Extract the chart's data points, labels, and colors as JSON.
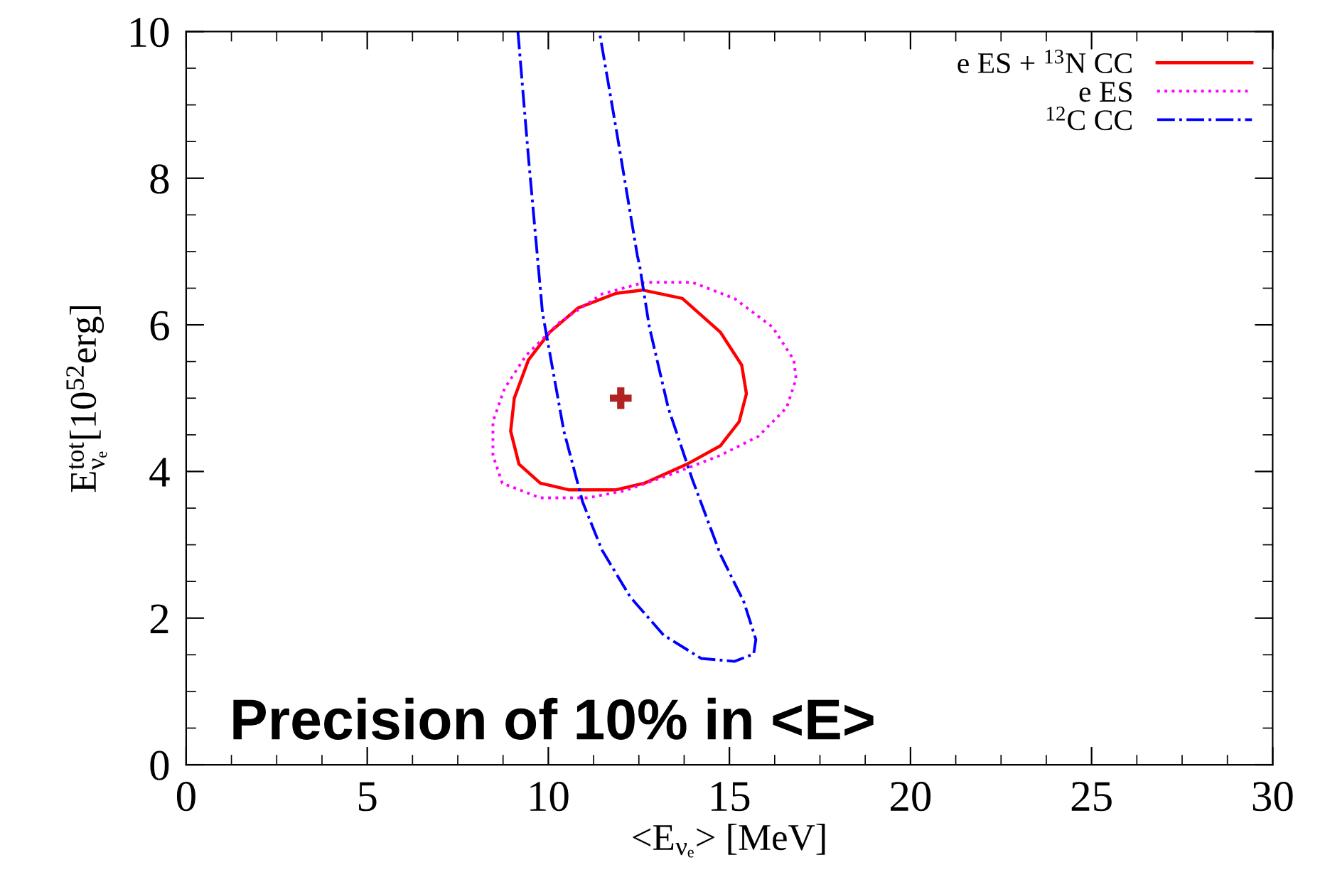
{
  "chart_data": {
    "type": "line",
    "xlabel": "<E$_{νₑ}$> [MeV]",
    "ylabel": "E$^{tot}$$_{νₑ}$[10$^{52}$erg]",
    "xlim": [
      0,
      30
    ],
    "ylim": [
      0,
      10
    ],
    "xticks": [
      0,
      5,
      10,
      15,
      20,
      25,
      30
    ],
    "yticks": [
      0,
      2,
      4,
      6,
      8,
      10
    ],
    "grid": false,
    "legend": "top right",
    "annotations": [
      "Precision of 10% in <E>"
    ],
    "series": [
      {
        "name": "e ES + $^{13}$N CC",
        "color": "#ff0000",
        "line_style": "solid",
        "x": [
          12.65,
          13.7,
          14.75,
          15.34,
          15.47,
          15.27,
          14.75,
          13.83,
          12.65,
          11.87,
          10.56,
          9.78,
          9.19,
          8.96,
          9.06,
          9.45,
          10.04,
          10.82,
          11.87,
          12.55
        ],
        "values": [
          6.47,
          6.36,
          5.9,
          5.45,
          5.06,
          4.68,
          4.35,
          4.1,
          3.84,
          3.75,
          3.75,
          3.84,
          4.1,
          4.55,
          5.0,
          5.52,
          5.9,
          6.23,
          6.43,
          6.47
        ]
      },
      {
        "name": "e ES",
        "color": "#ff00ff",
        "line_style": "dotted",
        "x": [
          12.79,
          13.97,
          15.14,
          16.19,
          16.78,
          16.84,
          16.58,
          15.8,
          14.75,
          13.44,
          12.13,
          11.08,
          9.78,
          8.73,
          8.47,
          8.47,
          8.79,
          9.38,
          10.3,
          11.48,
          12.65
        ],
        "values": [
          6.58,
          6.58,
          6.36,
          5.97,
          5.52,
          5.26,
          4.87,
          4.48,
          4.22,
          3.97,
          3.74,
          3.64,
          3.64,
          3.84,
          4.22,
          4.68,
          5.13,
          5.58,
          6.03,
          6.42,
          6.58
        ]
      },
      {
        "name": "$^{12}$C CC",
        "color": "#0000ff",
        "line_style": "dashdot",
        "x": [
          9.16,
          9.45,
          9.84,
          9.91,
          10.43,
          10.95,
          11.48,
          12.26,
          13.18,
          14.22,
          15.14,
          15.67,
          15.73,
          15.4,
          14.75,
          13.97,
          13.31,
          12.79,
          12.52,
          12.46,
          11.87,
          11.41
        ],
        "values": [
          10.0,
          8.29,
          6.16,
          5.97,
          4.55,
          3.58,
          2.93,
          2.29,
          1.77,
          1.45,
          1.41,
          1.51,
          1.71,
          2.22,
          2.87,
          3.9,
          4.87,
          5.97,
          6.81,
          6.94,
          8.68,
          10.0
        ]
      },
      {
        "type": "scatter",
        "marker": "cross",
        "color": "#b22222",
        "x": [
          12.0
        ],
        "values": [
          5.0
        ]
      }
    ]
  }
}
